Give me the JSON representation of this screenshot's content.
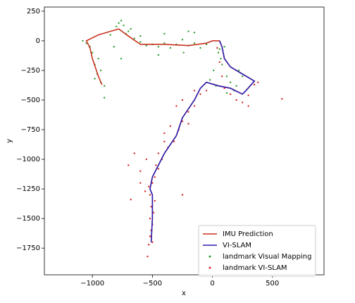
{
  "chart_data": {
    "type": "line",
    "xlabel": "x",
    "ylabel": "y",
    "xlim": [
      -1400,
      930
    ],
    "ylim": [
      -1975,
      285
    ],
    "xticks": [
      {
        "value": -1000,
        "label": "−1000"
      },
      {
        "value": -500,
        "label": "−500"
      },
      0,
      500
    ],
    "yticks": [
      250,
      0,
      {
        "value": -250,
        "label": "−250"
      },
      {
        "value": -500,
        "label": "−500"
      },
      {
        "value": -750,
        "label": "−750"
      },
      {
        "value": -1000,
        "label": "−1000"
      },
      {
        "value": -1250,
        "label": "−1250"
      },
      {
        "value": -1500,
        "label": "−1500"
      },
      {
        "value": -1750,
        "label": "−1750"
      }
    ],
    "legend": "lower right",
    "series": [
      {
        "name": "IMU Prediction",
        "color": "#c8321e",
        "mode": "line",
        "x": [
          -920,
          -950,
          -1000,
          -1020,
          -1050,
          -950,
          -850,
          -780,
          -700,
          -600,
          -400,
          -200,
          -50,
          0,
          60,
          80,
          100,
          150,
          250,
          350,
          280,
          250,
          150,
          50,
          -50,
          -100,
          -150,
          -250,
          -300,
          -400,
          -450,
          -500,
          -520,
          -500,
          -500,
          -510
        ],
        "y": [
          -370,
          -300,
          -150,
          -60,
          0,
          50,
          80,
          100,
          40,
          -30,
          -30,
          -40,
          -20,
          0,
          0,
          -50,
          -150,
          -220,
          -280,
          -340,
          -420,
          -450,
          -400,
          -380,
          -350,
          -400,
          -500,
          -650,
          -800,
          -950,
          -1050,
          -1150,
          -1250,
          -1300,
          -1500,
          -1700
        ]
      },
      {
        "name": "VI-SLAM",
        "color": "#2b1fb0",
        "mode": "line",
        "x": [
          60,
          80,
          100,
          150,
          250,
          350,
          280,
          250,
          150,
          50,
          -50,
          -100,
          -150,
          -250,
          -300,
          -400,
          -450,
          -500,
          -520,
          -500,
          -500,
          -510
        ],
        "y": [
          0,
          -50,
          -150,
          -220,
          -280,
          -340,
          -420,
          -450,
          -400,
          -380,
          -350,
          -400,
          -500,
          -650,
          -800,
          -950,
          -1050,
          -1150,
          -1250,
          -1300,
          -1500,
          -1700
        ]
      },
      {
        "name": "landmark Visual Mapping",
        "color": "#2ca02c",
        "mode": "markers",
        "x": [
          -1000,
          -1020,
          -980,
          -960,
          -930,
          -900,
          -950,
          -1080,
          -1050,
          -900,
          -850,
          -800,
          -780,
          -760,
          -740,
          -700,
          -720,
          -650,
          -600,
          -550,
          -500,
          -450,
          -400,
          -350,
          -300,
          -250,
          -200,
          -150,
          -100,
          -50,
          -200,
          -150,
          -400,
          -600,
          -450,
          50,
          80,
          120,
          150,
          200,
          250,
          220,
          100,
          70,
          10,
          -20,
          30,
          180,
          120,
          60,
          -680,
          -820,
          -760,
          -240,
          -980,
          -930
        ],
        "y": [
          -100,
          -50,
          -200,
          -280,
          -350,
          -380,
          -150,
          0,
          -20,
          -480,
          50,
          120,
          150,
          170,
          130,
          80,
          60,
          20,
          -10,
          -40,
          -30,
          -50,
          -20,
          -60,
          -30,
          10,
          -40,
          -20,
          -60,
          -30,
          80,
          70,
          60,
          40,
          -120,
          -100,
          -200,
          -300,
          -350,
          -380,
          -300,
          -250,
          -50,
          -150,
          -250,
          -330,
          -380,
          -420,
          -440,
          -70,
          100,
          -50,
          -150,
          -100,
          -320,
          -250
        ]
      },
      {
        "name": "landmark VI-SLAM",
        "color": "#d62728",
        "mode": "markers",
        "x": [
          100,
          150,
          200,
          250,
          300,
          350,
          380,
          300,
          580,
          -50,
          -100,
          -150,
          -200,
          -250,
          -280,
          -320,
          -370,
          -420,
          -450,
          -480,
          -500,
          -530,
          -520,
          -480,
          -510,
          -490,
          -520,
          -500,
          -510,
          -520,
          -500,
          -530,
          -540,
          -700,
          -650,
          -600,
          -680,
          -250,
          -400,
          -200,
          -350,
          -550,
          -600,
          -450,
          -300,
          -150,
          80,
          60,
          40,
          -560,
          -470,
          -400,
          -250
        ],
        "y": [
          -400,
          -450,
          -500,
          -520,
          -460,
          -370,
          -350,
          -550,
          -490,
          -420,
          -450,
          -550,
          -600,
          -680,
          -750,
          -850,
          -900,
          -1000,
          -1080,
          -1150,
          -1200,
          -1230,
          -1300,
          -1350,
          -1400,
          -1450,
          -1500,
          -1550,
          -1600,
          -1650,
          -1700,
          -1720,
          -1820,
          -1050,
          -950,
          -1200,
          -1340,
          -1300,
          -850,
          -700,
          -720,
          -1000,
          -1100,
          -950,
          -550,
          -420,
          -300,
          -180,
          -60,
          -1270,
          -1050,
          -780,
          -500
        ]
      }
    ]
  }
}
